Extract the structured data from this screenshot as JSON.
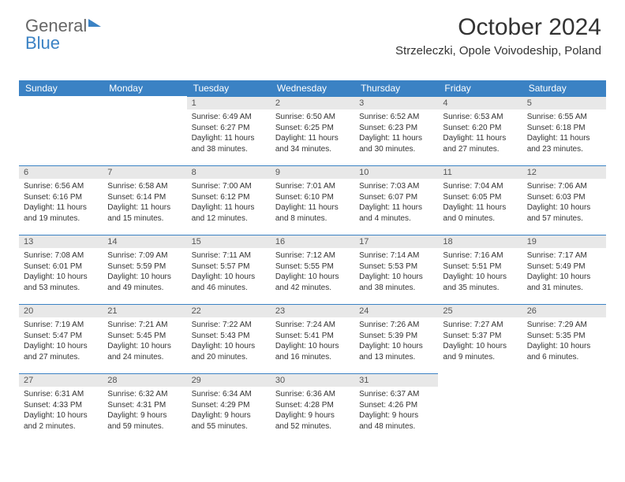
{
  "brand": {
    "part1": "General",
    "part2": "Blue"
  },
  "title": "October 2024",
  "location": "Strzeleczki, Opole Voivodeship, Poland",
  "colors": {
    "header_bg": "#3b82c4",
    "header_text": "#ffffff",
    "daynum_bg": "#e8e8e8",
    "text": "#333333",
    "page_bg": "#ffffff"
  },
  "fonts": {
    "title_size": 30,
    "location_size": 15,
    "weekday_size": 12,
    "daynum_size": 11,
    "body_size": 10
  },
  "weekdays": [
    "Sunday",
    "Monday",
    "Tuesday",
    "Wednesday",
    "Thursday",
    "Friday",
    "Saturday"
  ],
  "layout": {
    "cols": 7,
    "rows": 5,
    "first_weekday_index": 2
  },
  "days": [
    {
      "n": 1,
      "sunrise": "6:49 AM",
      "sunset": "6:27 PM",
      "daylight": "11 hours and 38 minutes."
    },
    {
      "n": 2,
      "sunrise": "6:50 AM",
      "sunset": "6:25 PM",
      "daylight": "11 hours and 34 minutes."
    },
    {
      "n": 3,
      "sunrise": "6:52 AM",
      "sunset": "6:23 PM",
      "daylight": "11 hours and 30 minutes."
    },
    {
      "n": 4,
      "sunrise": "6:53 AM",
      "sunset": "6:20 PM",
      "daylight": "11 hours and 27 minutes."
    },
    {
      "n": 5,
      "sunrise": "6:55 AM",
      "sunset": "6:18 PM",
      "daylight": "11 hours and 23 minutes."
    },
    {
      "n": 6,
      "sunrise": "6:56 AM",
      "sunset": "6:16 PM",
      "daylight": "11 hours and 19 minutes."
    },
    {
      "n": 7,
      "sunrise": "6:58 AM",
      "sunset": "6:14 PM",
      "daylight": "11 hours and 15 minutes."
    },
    {
      "n": 8,
      "sunrise": "7:00 AM",
      "sunset": "6:12 PM",
      "daylight": "11 hours and 12 minutes."
    },
    {
      "n": 9,
      "sunrise": "7:01 AM",
      "sunset": "6:10 PM",
      "daylight": "11 hours and 8 minutes."
    },
    {
      "n": 10,
      "sunrise": "7:03 AM",
      "sunset": "6:07 PM",
      "daylight": "11 hours and 4 minutes."
    },
    {
      "n": 11,
      "sunrise": "7:04 AM",
      "sunset": "6:05 PM",
      "daylight": "11 hours and 0 minutes."
    },
    {
      "n": 12,
      "sunrise": "7:06 AM",
      "sunset": "6:03 PM",
      "daylight": "10 hours and 57 minutes."
    },
    {
      "n": 13,
      "sunrise": "7:08 AM",
      "sunset": "6:01 PM",
      "daylight": "10 hours and 53 minutes."
    },
    {
      "n": 14,
      "sunrise": "7:09 AM",
      "sunset": "5:59 PM",
      "daylight": "10 hours and 49 minutes."
    },
    {
      "n": 15,
      "sunrise": "7:11 AM",
      "sunset": "5:57 PM",
      "daylight": "10 hours and 46 minutes."
    },
    {
      "n": 16,
      "sunrise": "7:12 AM",
      "sunset": "5:55 PM",
      "daylight": "10 hours and 42 minutes."
    },
    {
      "n": 17,
      "sunrise": "7:14 AM",
      "sunset": "5:53 PM",
      "daylight": "10 hours and 38 minutes."
    },
    {
      "n": 18,
      "sunrise": "7:16 AM",
      "sunset": "5:51 PM",
      "daylight": "10 hours and 35 minutes."
    },
    {
      "n": 19,
      "sunrise": "7:17 AM",
      "sunset": "5:49 PM",
      "daylight": "10 hours and 31 minutes."
    },
    {
      "n": 20,
      "sunrise": "7:19 AM",
      "sunset": "5:47 PM",
      "daylight": "10 hours and 27 minutes."
    },
    {
      "n": 21,
      "sunrise": "7:21 AM",
      "sunset": "5:45 PM",
      "daylight": "10 hours and 24 minutes."
    },
    {
      "n": 22,
      "sunrise": "7:22 AM",
      "sunset": "5:43 PM",
      "daylight": "10 hours and 20 minutes."
    },
    {
      "n": 23,
      "sunrise": "7:24 AM",
      "sunset": "5:41 PM",
      "daylight": "10 hours and 16 minutes."
    },
    {
      "n": 24,
      "sunrise": "7:26 AM",
      "sunset": "5:39 PM",
      "daylight": "10 hours and 13 minutes."
    },
    {
      "n": 25,
      "sunrise": "7:27 AM",
      "sunset": "5:37 PM",
      "daylight": "10 hours and 9 minutes."
    },
    {
      "n": 26,
      "sunrise": "7:29 AM",
      "sunset": "5:35 PM",
      "daylight": "10 hours and 6 minutes."
    },
    {
      "n": 27,
      "sunrise": "6:31 AM",
      "sunset": "4:33 PM",
      "daylight": "10 hours and 2 minutes."
    },
    {
      "n": 28,
      "sunrise": "6:32 AM",
      "sunset": "4:31 PM",
      "daylight": "9 hours and 59 minutes."
    },
    {
      "n": 29,
      "sunrise": "6:34 AM",
      "sunset": "4:29 PM",
      "daylight": "9 hours and 55 minutes."
    },
    {
      "n": 30,
      "sunrise": "6:36 AM",
      "sunset": "4:28 PM",
      "daylight": "9 hours and 52 minutes."
    },
    {
      "n": 31,
      "sunrise": "6:37 AM",
      "sunset": "4:26 PM",
      "daylight": "9 hours and 48 minutes."
    }
  ],
  "labels": {
    "sunrise": "Sunrise:",
    "sunset": "Sunset:",
    "daylight": "Daylight:"
  }
}
